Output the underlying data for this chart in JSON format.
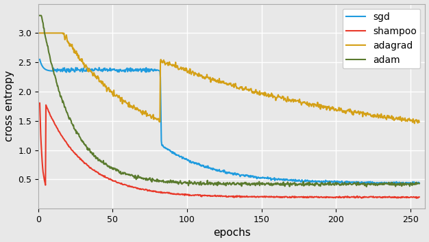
{
  "xlabel": "epochs",
  "ylabel": "cross entropy",
  "xlim": [
    0,
    260
  ],
  "ylim": [
    0.0,
    3.5
  ],
  "yticks": [
    0.5,
    1.0,
    1.5,
    2.0,
    2.5,
    3.0
  ],
  "xticks": [
    0,
    50,
    100,
    150,
    200,
    250
  ],
  "legend_labels": [
    "sgd",
    "shampoo",
    "adagrad",
    "adam"
  ],
  "colors": {
    "sgd": "#1f9bde",
    "shampoo": "#e8392a",
    "adagrad": "#d4a017",
    "adam": "#5a7a2e"
  },
  "background_color": "#e8e8e8",
  "grid_color": "#ffffff",
  "figsize": [
    6.26,
    3.54
  ],
  "dpi": 100
}
